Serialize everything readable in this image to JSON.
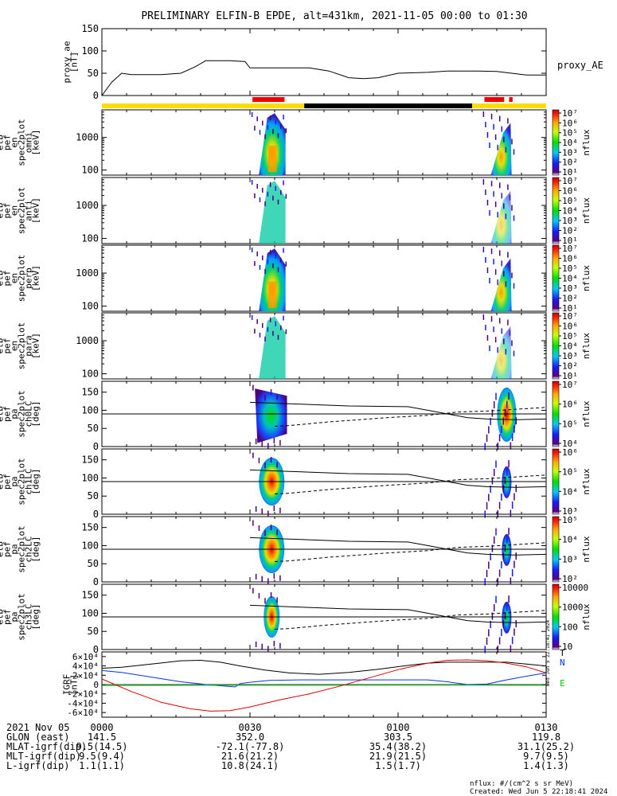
{
  "title": "PRELIMINARY ELFIN-B EPDE, alt=431km, 2021-11-05 00:00 to 01:30",
  "time_ticks": [
    "0000",
    "0030",
    "0100",
    "0130"
  ],
  "chart_data": [
    {
      "type": "line",
      "name": "proxy_ae",
      "ylabel": "proxy_ae\n[nT]",
      "legend": "proxy_AE",
      "ylim": [
        0,
        150
      ],
      "yticks": [
        "0",
        "50",
        "100",
        "150"
      ],
      "x_minutes": [
        0,
        2,
        4,
        6,
        12,
        16,
        19,
        21,
        26,
        29,
        30,
        31,
        42,
        46,
        50,
        53,
        56,
        60,
        66,
        70,
        73,
        76,
        80,
        83,
        86,
        90
      ],
      "values": [
        0,
        30,
        50,
        47,
        47,
        50,
        65,
        78,
        78,
        76,
        62,
        62,
        62,
        55,
        40,
        38,
        40,
        50,
        52,
        55,
        55,
        55,
        54,
        50,
        46,
        46
      ]
    },
    {
      "type": "heatmap",
      "name": "en_omni",
      "ylabel": "elb\npef\nen\nspec2plot\nomni\n[keV]",
      "yscale": "log",
      "yticks": [
        "100",
        "1000"
      ],
      "colorbar": {
        "ticks": [
          "10^1",
          "10^2",
          "10^3",
          "10^4",
          "10^5",
          "10^6",
          "10^7"
        ],
        "label": "nflux"
      }
    },
    {
      "type": "heatmap",
      "name": "en_anti",
      "ylabel": "elb\npef\nen\nspec2plot\nanti\n[keV]",
      "yscale": "log",
      "yticks": [
        "100",
        "1000"
      ],
      "colorbar": {
        "ticks": [
          "10^1",
          "10^2",
          "10^3",
          "10^4",
          "10^5",
          "10^6",
          "10^7"
        ],
        "label": "nflux"
      }
    },
    {
      "type": "heatmap",
      "name": "en_perp",
      "ylabel": "elb\npef\nen\nspec2plot\nperp\n[keV]",
      "yscale": "log",
      "yticks": [
        "100",
        "1000"
      ],
      "colorbar": {
        "ticks": [
          "10^1",
          "10^2",
          "10^3",
          "10^4",
          "10^5",
          "10^6",
          "10^7"
        ],
        "label": "nflux"
      }
    },
    {
      "type": "heatmap",
      "name": "en_para",
      "ylabel": "elb\npef\nen\nspec2plot\npara\n[keV]",
      "yscale": "log",
      "yticks": [
        "100",
        "1000"
      ],
      "colorbar": {
        "ticks": [
          "10^1",
          "10^2",
          "10^3",
          "10^4",
          "10^5",
          "10^6",
          "10^7"
        ],
        "label": "nflux"
      }
    },
    {
      "type": "heatmap",
      "name": "pa_ch0LC",
      "ylabel": "elb\npef\npa\nspec2plot\nch0LC\n[deg]",
      "ylim": [
        0,
        180
      ],
      "yticks": [
        "0",
        "50",
        "100",
        "150"
      ],
      "colorbar": {
        "ticks": [
          "10^4",
          "10^5",
          "10^6",
          "10^7"
        ],
        "label": "nflux"
      }
    },
    {
      "type": "heatmap",
      "name": "pa_ch1LC",
      "ylabel": "elb\npef\npa\nspec2plot\nch1LC\n[deg]",
      "ylim": [
        0,
        180
      ],
      "yticks": [
        "0",
        "50",
        "100",
        "150"
      ],
      "colorbar": {
        "ticks": [
          "10^3",
          "10^4",
          "10^5",
          "10^6"
        ],
        "label": "nflux"
      }
    },
    {
      "type": "heatmap",
      "name": "pa_ch2LC",
      "ylabel": "elb\npef\npa\nspec2plot\nch2LC\n[deg]",
      "ylim": [
        0,
        180
      ],
      "yticks": [
        "0",
        "50",
        "100",
        "150"
      ],
      "colorbar": {
        "ticks": [
          "10^2",
          "10^3",
          "10^4",
          "10^5"
        ],
        "label": "nflux"
      }
    },
    {
      "type": "heatmap",
      "name": "pa_ch3LC",
      "ylabel": "elb\npef\npa\nspec2plot\nch3LC\n[deg]",
      "ylim": [
        0,
        180
      ],
      "yticks": [
        "0",
        "50",
        "100",
        "150"
      ],
      "colorbar": {
        "ticks": [
          "10",
          "100",
          "1000",
          "10000"
        ],
        "label": "nflux"
      }
    },
    {
      "type": "line",
      "name": "igrf",
      "ylabel": "IGRF\n[nT]",
      "ylim": [
        -70000,
        70000
      ],
      "yticks": [
        "6×10^4",
        "4×10^4",
        "2×10^4",
        "0",
        "-2×10^4",
        "-4×10^4",
        "-6×10^4"
      ],
      "legend": [
        "T",
        "N",
        "E"
      ],
      "series": [
        {
          "name": "T",
          "color": "#000000",
          "x_minutes": [
            0,
            4,
            10,
            16,
            20,
            24,
            28,
            33,
            38,
            44,
            50,
            56,
            62,
            66,
            70,
            74,
            78,
            82,
            86,
            90
          ],
          "values": [
            35000,
            37000,
            44000,
            51000,
            52000,
            48000,
            40000,
            31000,
            25000,
            22000,
            26000,
            33000,
            41000,
            46000,
            48000,
            48000,
            48000,
            48000,
            44000,
            40000
          ]
        },
        {
          "name": "N",
          "color": "#0033ff",
          "x_minutes": [
            0,
            4,
            10,
            16,
            22,
            27,
            28,
            30,
            34,
            40,
            50,
            60,
            66,
            70,
            74,
            78,
            82,
            86,
            90
          ],
          "values": [
            30000,
            26000,
            16000,
            6000,
            -1000,
            -5000,
            2000,
            5000,
            9000,
            10000,
            10000,
            10000,
            10000,
            6000,
            0,
            1000,
            10000,
            18000,
            25000
          ]
        },
        {
          "name": "E",
          "color": "#00cc00",
          "x_minutes": [
            0,
            20,
            40,
            60,
            80,
            90
          ],
          "values": [
            -2000,
            -1500,
            -1500,
            -1200,
            -1300,
            -1500
          ]
        },
        {
          "name": "",
          "color": "#dd0000",
          "x_minutes": [
            0,
            6,
            12,
            18,
            22,
            26,
            30,
            36,
            42,
            48,
            54,
            60,
            66,
            70,
            74,
            78,
            82,
            86,
            90
          ],
          "values": [
            12000,
            -15000,
            -38000,
            -52000,
            -57000,
            -56000,
            -48000,
            -33000,
            -20000,
            -4000,
            14000,
            32000,
            46000,
            52000,
            53000,
            51000,
            46000,
            38000,
            25000
          ]
        }
      ]
    }
  ],
  "ephemeris": {
    "rows": [
      {
        "label": "2021 Nov 05",
        "values": [
          "0000",
          "0030",
          "0100",
          "0130"
        ]
      },
      {
        "label": "GLON (east)",
        "values": [
          "141.5",
          "352.0",
          "303.5",
          "119.8"
        ]
      },
      {
        "label": "MLAT-igrf(dip)",
        "values": [
          "9.5(14.5)",
          "-72.1(-77.8)",
          "35.4(38.2)",
          "31.1(25.2)"
        ]
      },
      {
        "label": "MLT-igrf(dip)",
        "values": [
          "9.5(9.4)",
          "21.6(21.2)",
          "21.9(21.5)",
          "9.7(9.5)"
        ]
      },
      {
        "label": "L-igrf(dip)",
        "values": [
          "1.1(1.1)",
          "10.8(24.1)",
          "1.5(1.7)",
          "1.4(1.3)"
        ]
      }
    ]
  },
  "footer": {
    "units": "nflux: #/(cm^2 s sr MeV)",
    "created": "Created: Wed Jun  5 22:18:41 2024",
    "side_stamp": "Wed Jun  5 22:18:41 2024"
  },
  "colors": {
    "yellow_bar": "#ffdd00",
    "black_bar": "#000000",
    "red_marker": "#ee0000"
  }
}
